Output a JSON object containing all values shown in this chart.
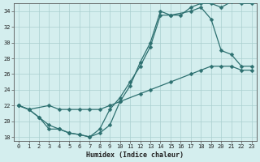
{
  "xlabel": "Humidex (Indice chaleur)",
  "bg_color": "#d4eeee",
  "line_color": "#2d7070",
  "grid_color": "#aacfcf",
  "xlim": [
    -0.5,
    23.5
  ],
  "ylim": [
    17.5,
    35.0
  ],
  "xticks": [
    0,
    1,
    2,
    3,
    4,
    5,
    6,
    7,
    8,
    9,
    10,
    11,
    12,
    13,
    14,
    15,
    16,
    17,
    18,
    19,
    20,
    21,
    22,
    23
  ],
  "yticks": [
    18,
    20,
    22,
    24,
    26,
    28,
    30,
    32,
    34
  ],
  "line1_x": [
    0,
    1,
    2,
    3,
    4,
    5,
    6,
    7,
    8,
    9,
    10,
    11,
    12,
    13,
    14,
    15,
    16,
    17,
    18,
    19,
    20,
    21,
    22,
    23
  ],
  "line1_y": [
    22,
    21.5,
    20.5,
    19.5,
    19.0,
    18.5,
    18.3,
    18.0,
    18.5,
    19.5,
    22.5,
    24.5,
    27.5,
    30.0,
    34.0,
    33.5,
    33.5,
    34.5,
    35.0,
    35.0,
    34.5,
    35.2,
    35.0,
    35.0
  ],
  "line2_x": [
    0,
    1,
    2,
    3,
    4,
    5,
    6,
    7,
    8,
    9,
    10,
    11,
    12,
    13,
    14,
    15,
    17,
    18,
    19,
    20,
    21,
    22,
    23
  ],
  "line2_y": [
    22,
    21.5,
    20.5,
    19.0,
    19.0,
    18.5,
    18.3,
    18.0,
    19.0,
    21.5,
    23.0,
    25.0,
    27.0,
    29.5,
    33.5,
    33.5,
    34.0,
    34.5,
    33.0,
    29.0,
    28.5,
    27.0,
    27.0
  ],
  "line3_x": [
    0,
    1,
    3,
    4,
    5,
    6,
    7,
    8,
    9,
    10,
    12,
    13,
    15,
    17,
    18,
    19,
    20,
    21,
    22,
    23
  ],
  "line3_y": [
    22,
    21.5,
    22.0,
    21.5,
    21.5,
    21.5,
    21.5,
    21.5,
    22.0,
    22.5,
    23.5,
    24.0,
    25.0,
    26.0,
    26.5,
    27.0,
    27.0,
    27.0,
    26.5,
    26.5
  ]
}
